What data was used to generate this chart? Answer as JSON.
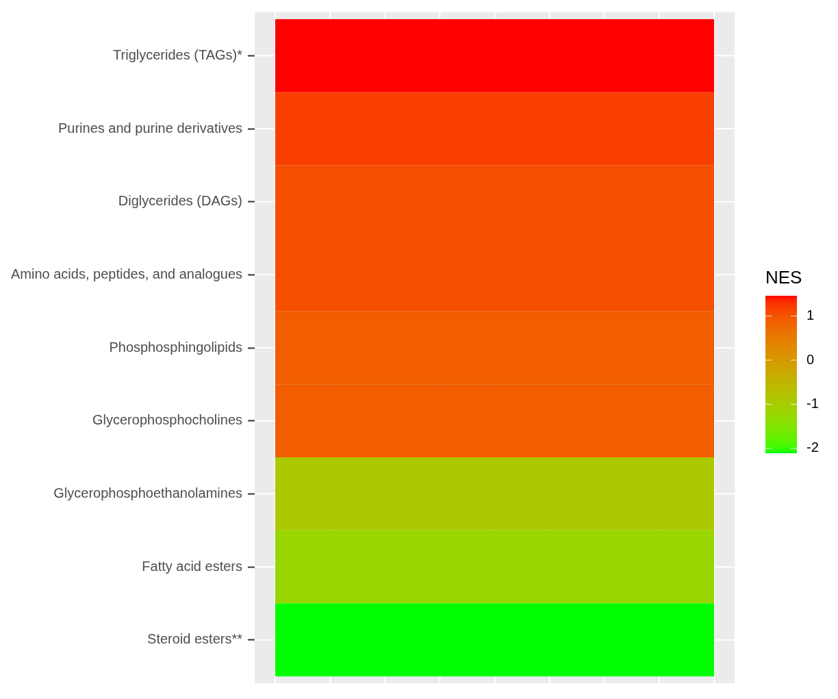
{
  "chart_data": {
    "type": "heatmap",
    "categories": [
      null
    ],
    "y_categories": [
      "Triglycerides (TAGs)*",
      "Purines and purine derivatives",
      "Diglycerides (DAGs)",
      "Amino acids, peptides, and analogues",
      "Phosphosphingolipids",
      "Glycerophosphocholines",
      "Glycerophosphoethanolamines",
      "Fatty acid esters",
      "Steroid esters**"
    ],
    "cells": [
      [
        1.46
      ],
      [
        1.2
      ],
      [
        1.05
      ],
      [
        1.05
      ],
      [
        0.9
      ],
      [
        0.9
      ],
      [
        -0.9
      ],
      [
        -1.2
      ],
      [
        -2.11
      ]
    ],
    "clabel": "NES",
    "clim": [
      -2.11,
      1.46
    ],
    "cticks": [
      -2,
      -1,
      0,
      1
    ],
    "tick_labels": "y",
    "grid": true
  }
}
